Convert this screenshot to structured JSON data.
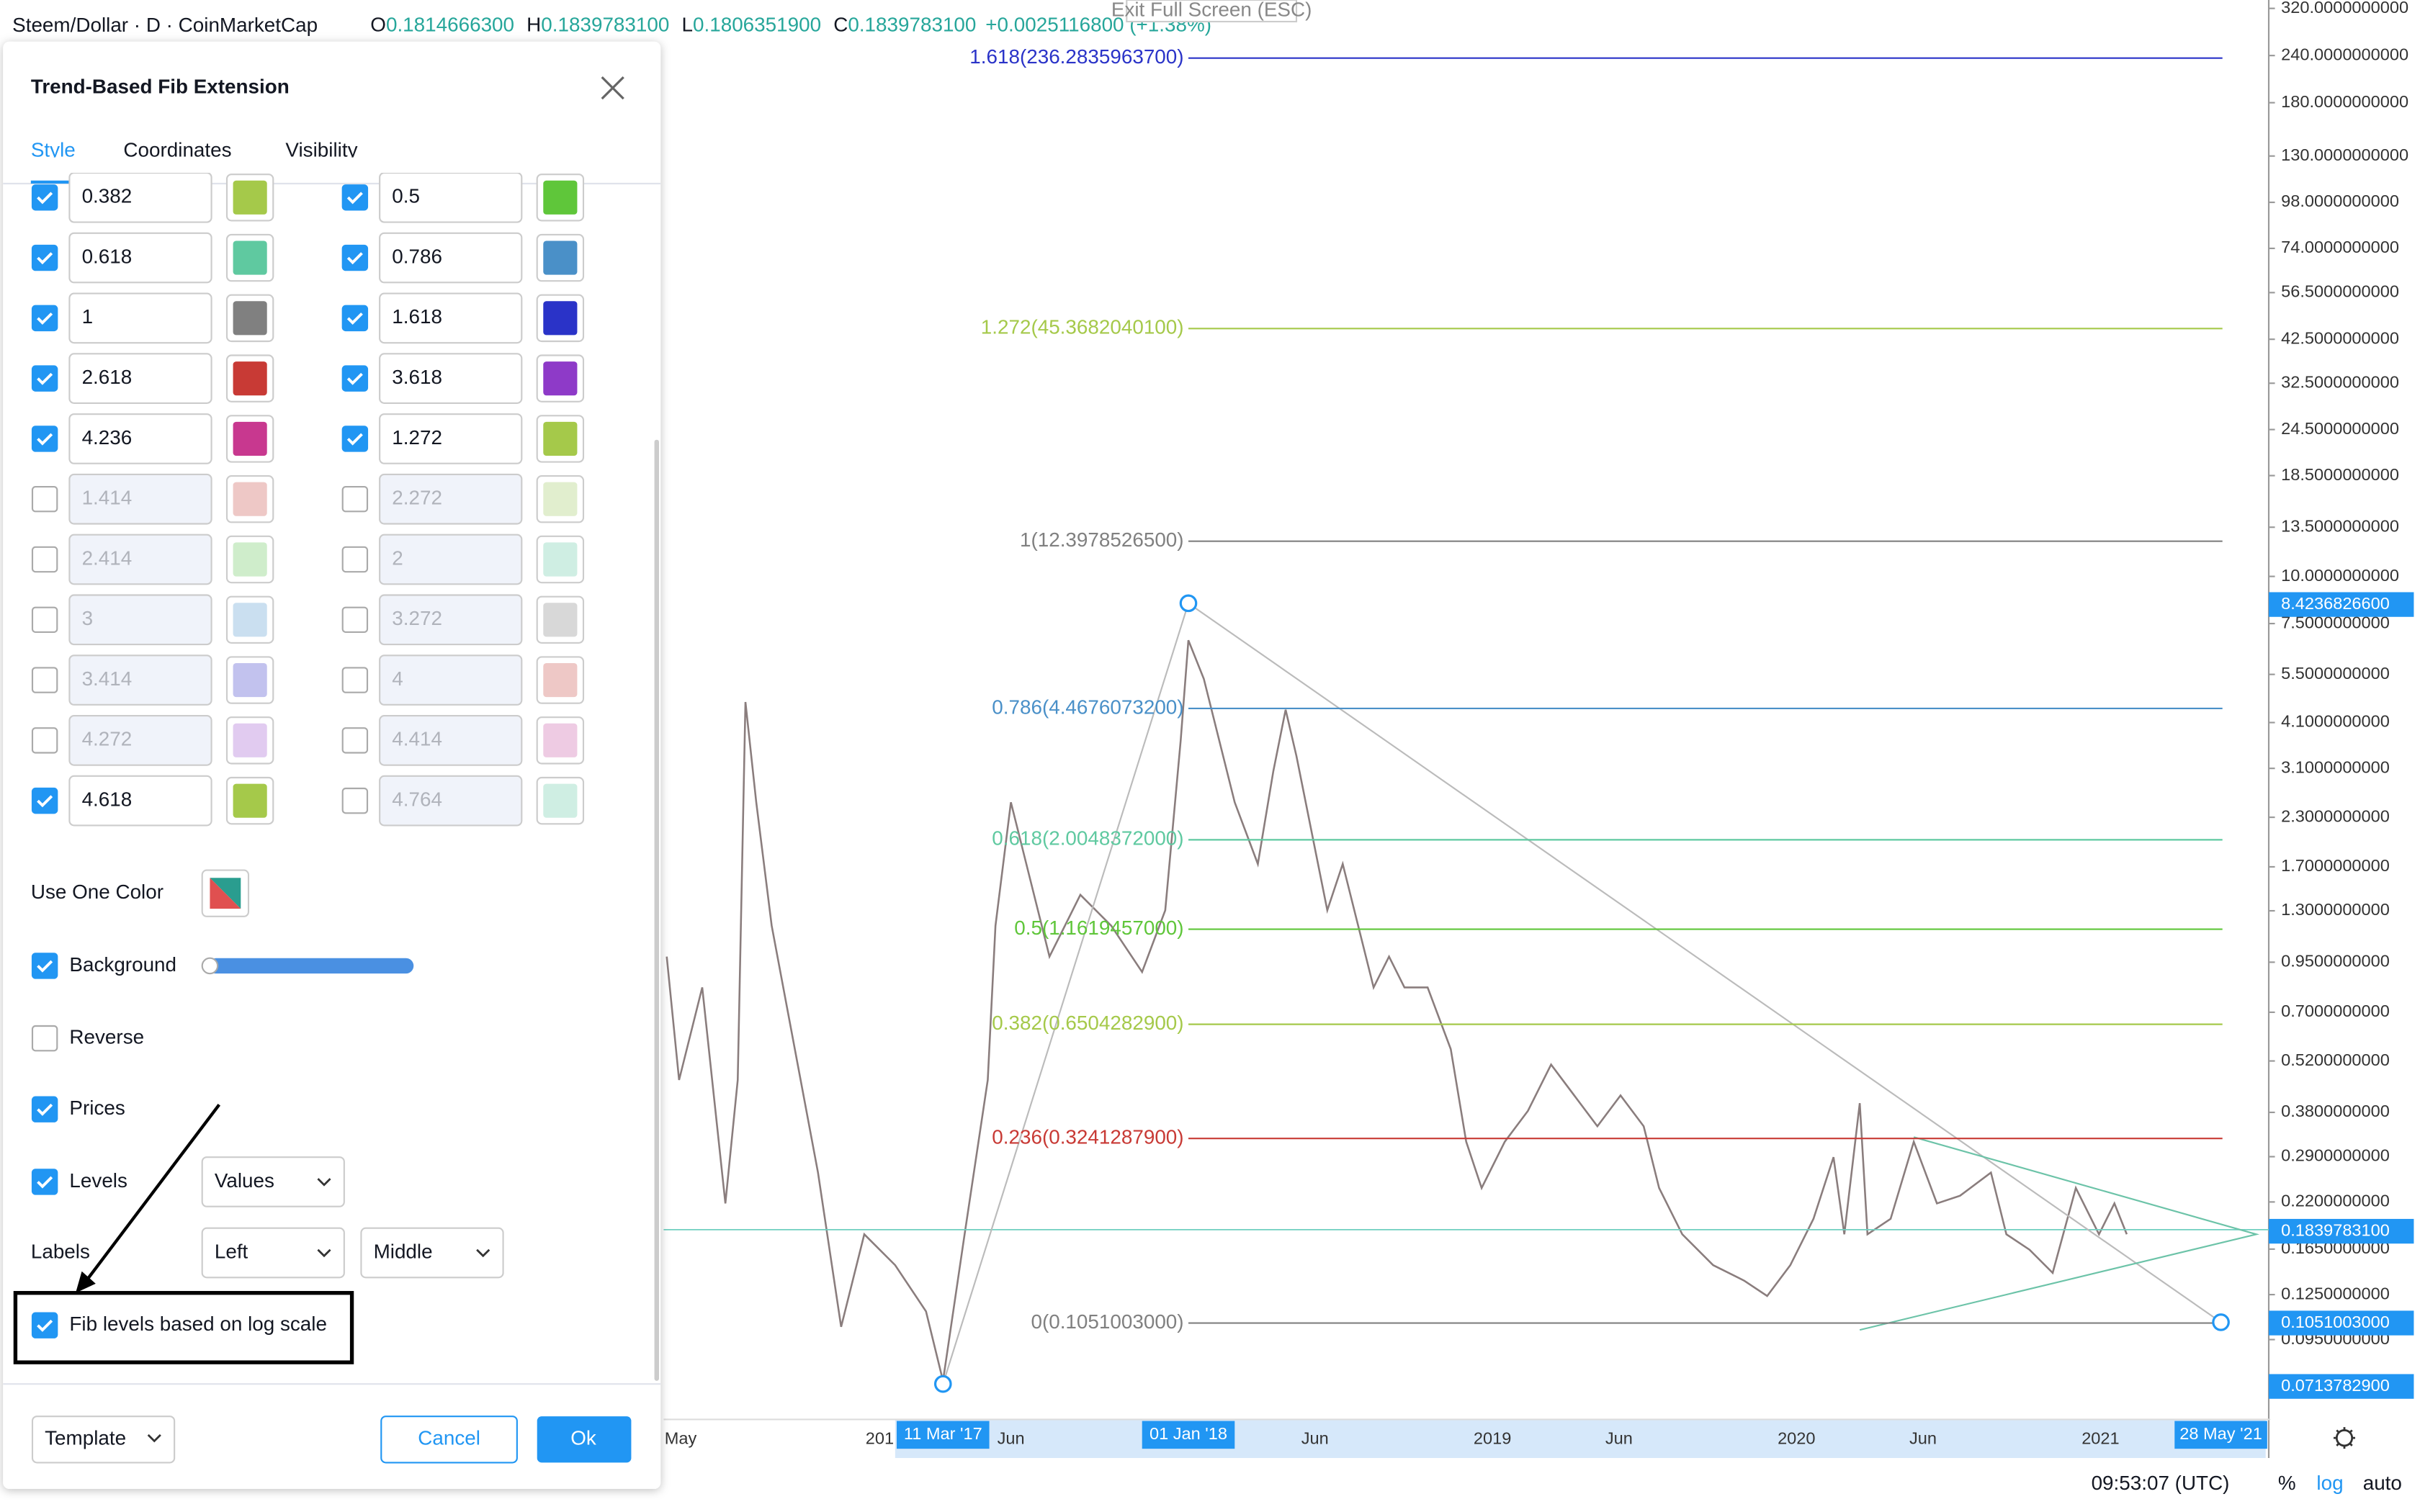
{
  "header": {
    "title": "Steem/Dollar · D · CoinMarketCap",
    "ohlc": [
      {
        "key": "O",
        "value": "0.1814666300"
      },
      {
        "key": "H",
        "value": "0.1839783100"
      },
      {
        "key": "L",
        "value": "0.1806351900"
      },
      {
        "key": "C",
        "value": "0.1839783100"
      }
    ],
    "change": "+0.0025116800 (+1.38%)"
  },
  "exit_button": "Exit Full Screen (ESC)",
  "fib_levels": [
    {
      "label": "1.618(236.2835963700)",
      "color": "#2a33c8"
    },
    {
      "label": "1.272(45.3682040100)",
      "color": "#a5c94a"
    },
    {
      "label": "1(12.3978526500)",
      "color": "#808080"
    },
    {
      "label": "0.786(4.4676073200)",
      "color": "#4a90c8"
    },
    {
      "label": "0.618(2.0048372000)",
      "color": "#5fc9a0"
    },
    {
      "label": "0.5(1.1619457000)",
      "color": "#5fc63a"
    },
    {
      "label": "0.382(0.6504282900)",
      "color": "#a5c94a"
    },
    {
      "label": "0.236(0.3241287900)",
      "color": "#c83a35"
    },
    {
      "label": "0(0.1051003000)",
      "color": "#808080"
    }
  ],
  "price_axis": {
    "labels": [
      "320.0000000000",
      "240.0000000000",
      "180.0000000000",
      "130.0000000000",
      "98.0000000000",
      "74.0000000000",
      "56.5000000000",
      "42.5000000000",
      "32.5000000000",
      "24.5000000000",
      "18.5000000000",
      "13.5000000000",
      "10.0000000000",
      "7.5000000000",
      "5.5000000000",
      "4.1000000000",
      "3.1000000000",
      "2.3000000000",
      "1.7000000000",
      "1.3000000000",
      "0.9500000000",
      "0.7000000000",
      "0.5200000000",
      "0.3800000000",
      "0.2900000000",
      "0.2200000000",
      "0.1650000000",
      "0.1250000000",
      "0.0950000000"
    ],
    "badges": [
      "8.4236826600",
      "0.1839783100",
      "0.1051003000",
      "0.0713782900"
    ]
  },
  "time_axis": {
    "labels": [
      "May",
      "201",
      "Jun",
      "Jun",
      "2019",
      "Jun",
      "2020",
      "Jun",
      "2021"
    ],
    "badges": [
      "11 Mar '17",
      "01 Jan '18",
      "28 May '21"
    ]
  },
  "dialog": {
    "title": "Trend-Based Fib Extension",
    "tabs": [
      "Style",
      "Coordinates",
      "Visibility"
    ],
    "levels": [
      {
        "checked": true,
        "value": "0.382",
        "color": "#a5c94a"
      },
      {
        "checked": true,
        "value": "0.5",
        "color": "#5fc63a"
      },
      {
        "checked": true,
        "value": "0.618",
        "color": "#5fc9a0"
      },
      {
        "checked": true,
        "value": "0.786",
        "color": "#4a90c8"
      },
      {
        "checked": true,
        "value": "1",
        "color": "#808080"
      },
      {
        "checked": true,
        "value": "1.618",
        "color": "#2a33c8"
      },
      {
        "checked": true,
        "value": "2.618",
        "color": "#c83a35"
      },
      {
        "checked": true,
        "value": "3.618",
        "color": "#8e3ac8"
      },
      {
        "checked": true,
        "value": "4.236",
        "color": "#c8388f"
      },
      {
        "checked": true,
        "value": "1.272",
        "color": "#a5c94a"
      },
      {
        "checked": false,
        "value": "1.414",
        "color": "#e09a98"
      },
      {
        "checked": false,
        "value": "2.272",
        "color": "#c9e0a5"
      },
      {
        "checked": false,
        "value": "2.414",
        "color": "#a8dea0"
      },
      {
        "checked": false,
        "value": "2",
        "color": "#a8e0cc"
      },
      {
        "checked": false,
        "value": "3",
        "color": "#9ec4e4"
      },
      {
        "checked": false,
        "value": "3.272",
        "color": "#b8b8b8"
      },
      {
        "checked": false,
        "value": "3.414",
        "color": "#8f90e0"
      },
      {
        "checked": false,
        "value": "4",
        "color": "#e09a98"
      },
      {
        "checked": false,
        "value": "4.272",
        "color": "#c9a0e4"
      },
      {
        "checked": false,
        "value": "4.414",
        "color": "#e0a0cc"
      },
      {
        "checked": true,
        "value": "4.618",
        "color": "#a5c94a"
      },
      {
        "checked": false,
        "value": "4.764",
        "color": "#a8e0cc"
      }
    ],
    "options": [
      {
        "label": "Use One Color"
      },
      {
        "label": "Background",
        "checked": true
      },
      {
        "label": "Reverse",
        "checked": false
      },
      {
        "label": "Prices",
        "checked": true
      },
      {
        "label": "Levels",
        "checked": true,
        "select": "Values"
      },
      {
        "label": "Labels",
        "selects": [
          "Left",
          "Middle"
        ]
      },
      {
        "label": "Fib levels based on log scale",
        "checked": true
      }
    ],
    "buttons": {
      "template": "Template",
      "cancel": "Cancel",
      "ok": "Ok"
    }
  },
  "footer": {
    "time": "09:53:07 (UTC)",
    "percent": "%",
    "log": "log",
    "auto": "auto"
  }
}
